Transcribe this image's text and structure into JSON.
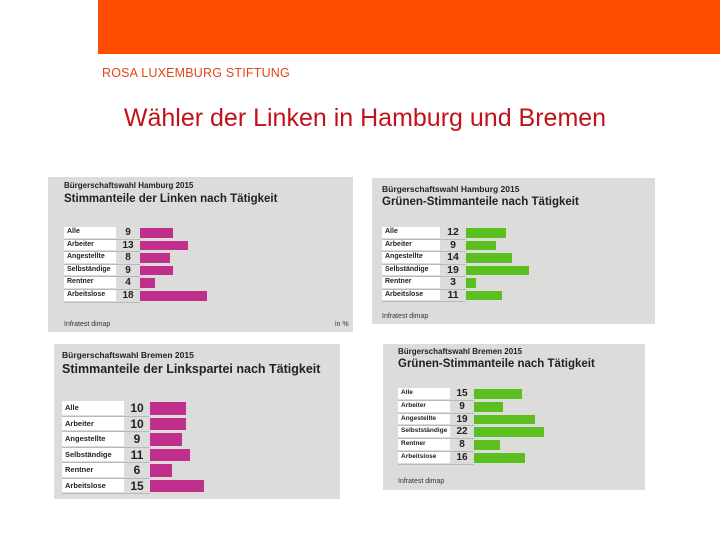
{
  "header": {
    "brand": "ROSA LUXEMBURG STIFTUNG"
  },
  "slide": {
    "title": "Wähler der Linken in Hamburg und Bremen"
  },
  "colors": {
    "top_bar": "#ff4d00",
    "linke": "#c02f8c",
    "gruene": "#5bbf1f",
    "title": "#c0121a"
  },
  "panels": {
    "p1": {
      "subtitle": "Bürgerschaftswahl Hamburg 2015",
      "heading": "Stimmanteile der Linken nach Tätigkeit",
      "source": "Infratest dimap",
      "unit": "in %",
      "rows": [
        {
          "label": "Alle",
          "value": "9"
        },
        {
          "label": "Arbeiter",
          "value": "13"
        },
        {
          "label": "Angestellte",
          "value": "8"
        },
        {
          "label": "Selbständige",
          "value": "9"
        },
        {
          "label": "Rentner",
          "value": "4"
        },
        {
          "label": "Arbeitslose",
          "value": "18"
        }
      ]
    },
    "p2": {
      "subtitle": "Bürgerschaftswahl Hamburg 2015",
      "heading": "Grünen-Stimmanteile nach Tätigkeit",
      "source": "Infratest dimap",
      "rows": [
        {
          "label": "Alle",
          "value": "12"
        },
        {
          "label": "Arbeiter",
          "value": "9"
        },
        {
          "label": "Angestellte",
          "value": "14"
        },
        {
          "label": "Selbständige",
          "value": "19"
        },
        {
          "label": "Rentner",
          "value": "3"
        },
        {
          "label": "Arbeitslose",
          "value": "11"
        }
      ]
    },
    "p3": {
      "subtitle": "Bürgerschaftswahl Bremen 2015",
      "heading": "Stimmanteile der Linkspartei nach Tätigkeit",
      "rows": [
        {
          "label": "Alle",
          "value": "10"
        },
        {
          "label": "Arbeiter",
          "value": "10"
        },
        {
          "label": "Angestellte",
          "value": "9"
        },
        {
          "label": "Selbständige",
          "value": "11"
        },
        {
          "label": "Rentner",
          "value": "6"
        },
        {
          "label": "Arbeitslose",
          "value": "15"
        }
      ]
    },
    "p4": {
      "subtitle": "Bürgerschaftswahl Bremen 2015",
      "heading": "Grünen-Stimmanteile nach Tätigkeit",
      "source": "Infratest dimap",
      "rows": [
        {
          "label": "Alle",
          "value": "15"
        },
        {
          "label": "Arbeiter",
          "value": "9"
        },
        {
          "label": "Angestellte",
          "value": "19"
        },
        {
          "label": "Selbstständige",
          "value": "22"
        },
        {
          "label": "Rentner",
          "value": "8"
        },
        {
          "label": "Arbeitslose",
          "value": "16"
        }
      ]
    }
  }
}
